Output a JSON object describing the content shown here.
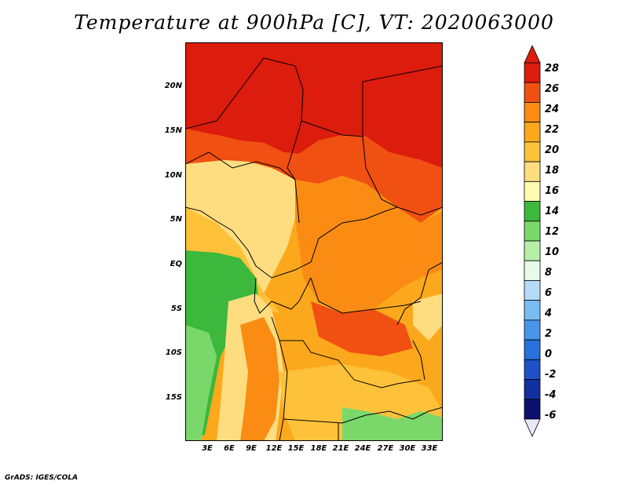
{
  "title": "Temperature at 900hPa [C], VT: 2020063000",
  "credit": "GrADS: IGES/COLA",
  "map": {
    "lat_labels": [
      "20N",
      "15N",
      "10N",
      "5N",
      "EQ",
      "5S",
      "10S",
      "15S"
    ],
    "lon_labels": [
      "3E",
      "6E",
      "9E",
      "12E",
      "15E",
      "18E",
      "21E",
      "24E",
      "27E",
      "30E",
      "33E"
    ]
  },
  "colorbar": {
    "labels": [
      "28",
      "26",
      "24",
      "22",
      "20",
      "18",
      "16",
      "14",
      "12",
      "10",
      "8",
      "6",
      "4",
      "2",
      "0",
      "-2",
      "-4",
      "-6"
    ],
    "colors": [
      "#dc1c0c",
      "#f05012",
      "#fa8c14",
      "#fca81c",
      "#fec23a",
      "#fedd80",
      "#fdfcb0",
      "#3cb83c",
      "#7ad86a",
      "#b6f0a8",
      "#e8fae8",
      "#b4dcfa",
      "#78bcf2",
      "#4896ea",
      "#2870dc",
      "#1e50c8",
      "#1030a0",
      "#0a1070"
    ]
  }
}
